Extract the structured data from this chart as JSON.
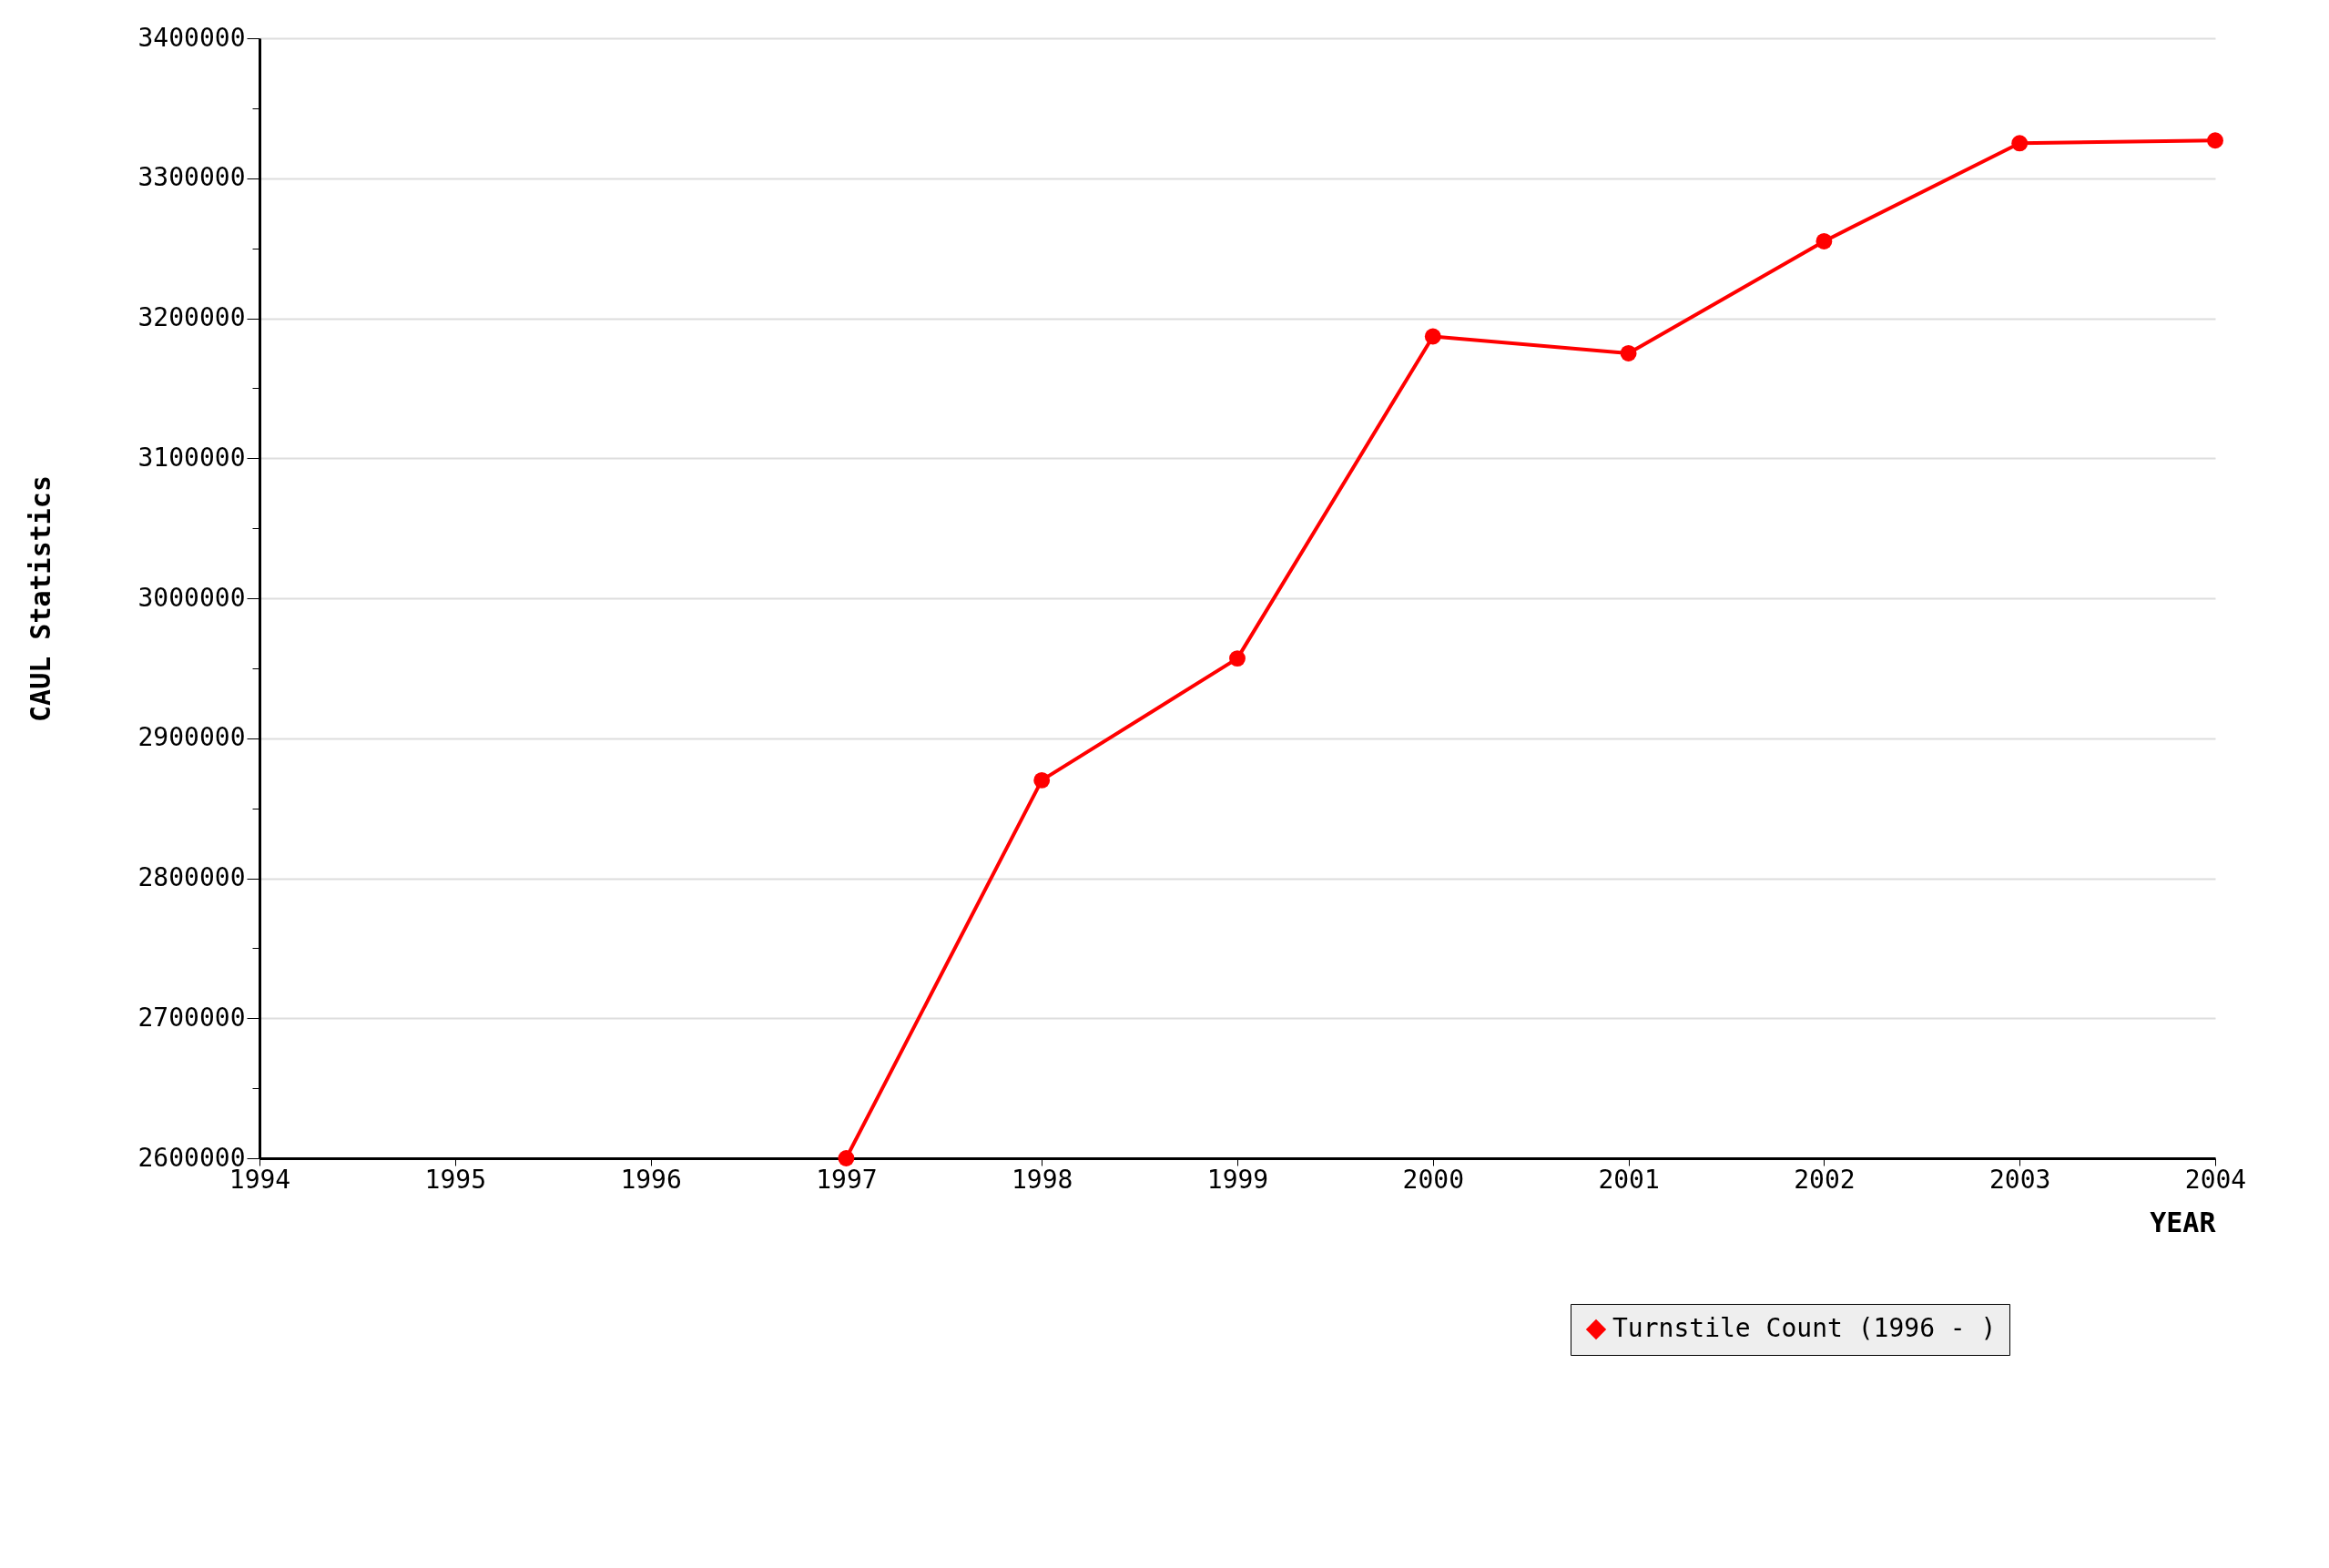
{
  "chart_data": {
    "type": "line",
    "xlabel": "YEAR",
    "ylabel": "CAUL Statistics",
    "x": [
      1997,
      1998,
      1999,
      2000,
      2001,
      2002,
      2003,
      2004
    ],
    "series": [
      {
        "name": "Turnstile Count (1996 - )",
        "color": "#ff0000",
        "values": [
          2600000,
          2870000,
          2957000,
          3187000,
          3175000,
          3255000,
          3325000,
          3327000
        ]
      }
    ],
    "xlim": [
      1994,
      2004
    ],
    "xticks": [
      1994,
      1995,
      1996,
      1997,
      1998,
      1999,
      2000,
      2001,
      2002,
      2003,
      2004
    ],
    "ylim": [
      2600000,
      3400000
    ],
    "yticks": [
      2600000,
      {
        "value": 2650000,
        "label": null
      },
      2700000,
      {
        "value": 2750000,
        "label": null
      },
      2800000,
      {
        "value": 2850000,
        "label": null
      },
      2900000,
      {
        "value": 2950000,
        "label": null
      },
      3000000,
      {
        "value": 3050000,
        "label": null
      },
      3100000,
      {
        "value": 3150000,
        "label": null
      },
      3200000,
      {
        "value": 3250000,
        "label": null
      },
      3300000,
      {
        "value": 3350000,
        "label": null
      },
      3400000
    ],
    "grid": "y",
    "legend": "bottom right",
    "marker": "circle",
    "line_style": "solid"
  }
}
